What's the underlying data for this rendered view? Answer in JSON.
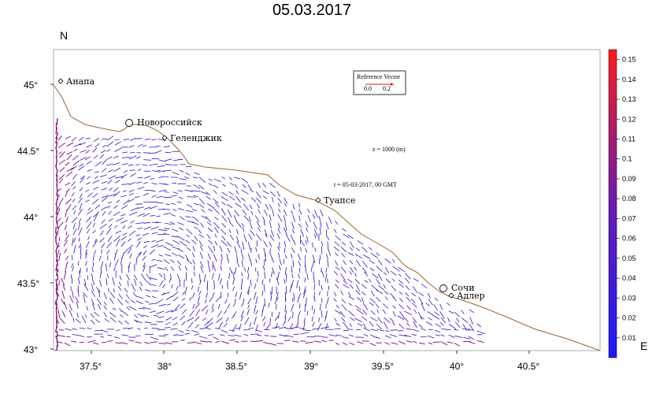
{
  "title": "05.03.2017",
  "axes": {
    "north_label": "N",
    "east_label": "E",
    "x_ticks": [
      "37.5°",
      "38°",
      "38.5°",
      "39°",
      "39.5°",
      "40°",
      "40.5°"
    ],
    "y_ticks": [
      "45°",
      "44.5°",
      "44°",
      "43.5°",
      "43°"
    ]
  },
  "cities": [
    {
      "name": "Анапа",
      "lon": 37.32,
      "lat": 45.0,
      "marker": "diamond"
    },
    {
      "name": "Новороссийск",
      "lon": 37.77,
      "lat": 44.72,
      "marker": "circle"
    },
    {
      "name": "Геленджик",
      "lon": 38.0,
      "lat": 44.6,
      "marker": "diamond"
    },
    {
      "name": "Туапсе",
      "lon": 39.05,
      "lat": 44.13,
      "marker": "diamond"
    },
    {
      "name": "Сочи",
      "lon": 39.72,
      "lat": 43.47,
      "marker": "circle"
    },
    {
      "name": "Адлер",
      "lon": 39.92,
      "lat": 43.42,
      "marker": "diamond"
    }
  ],
  "annotations": {
    "depth": "z = 1000 (m)",
    "time": "t = 05-03-2017, 00 GMT",
    "reference_title": "Reference Vector",
    "reference_values": "0.0       0.2"
  },
  "colorbar": {
    "ticks": [
      "0.01",
      "0.02",
      "0.03",
      "0.04",
      "0.05",
      "0.06",
      "0.07",
      "0.08",
      "0.09",
      "0.1",
      "0.11",
      "0.12",
      "0.13",
      "0.14",
      "0.15"
    ],
    "color_low": "#1a1aff",
    "color_high": "#ff1a1a",
    "range": [
      0.0,
      0.155
    ]
  },
  "colors": {
    "coastline": "#a0622d",
    "vector": "#3d0cc8",
    "vector_strong": "#8a1a88"
  }
}
